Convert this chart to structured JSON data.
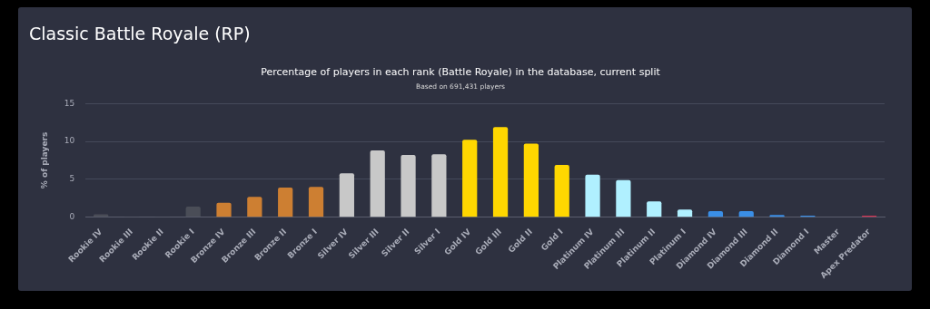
{
  "chart_data": {
    "type": "bar",
    "title": "Classic Battle Royale (RP)",
    "subtitle": "Percentage of players in each rank (Battle Royale) in the database, current split",
    "annotations": [
      "Based on 691,431 players"
    ],
    "ylabel": "% of players",
    "categories": [
      "Rookie IV",
      "Rookie III",
      "Rookie II",
      "Rookie I",
      "Bronze IV",
      "Bronze III",
      "Bronze II",
      "Bronze I",
      "Silver IV",
      "Silver III",
      "Silver II",
      "Silver I",
      "Gold IV",
      "Gold III",
      "Gold II",
      "Gold I",
      "Platinum IV",
      "Platinum III",
      "Platinum II",
      "Platinum I",
      "Diamond IV",
      "Diamond III",
      "Diamond II",
      "Diamond I",
      "Master",
      "Apex Predator"
    ],
    "values": [
      0.4,
      0.1,
      0.1,
      1.4,
      1.9,
      2.7,
      3.9,
      4.0,
      5.8,
      8.8,
      8.2,
      8.3,
      10.2,
      11.9,
      9.7,
      6.9,
      5.6,
      4.9,
      2.1,
      1.0,
      0.8,
      0.8,
      0.3,
      0.2,
      null,
      0.2
    ],
    "colors": [
      "#4a4d57",
      "#4a4d57",
      "#4a4d57",
      "#4a4d57",
      "#cd7f32",
      "#cd7f32",
      "#cd7f32",
      "#cd7f32",
      "#c8c8c8",
      "#c8c8c8",
      "#c8c8c8",
      "#c8c8c8",
      "#ffd700",
      "#ffd700",
      "#ffd700",
      "#ffd700",
      "#b0f0ff",
      "#b0f0ff",
      "#b0f0ff",
      "#b0f0ff",
      "#3a8ee6",
      "#3a8ee6",
      "#3a8ee6",
      "#3a8ee6",
      "#9b59b6",
      "#d63150"
    ],
    "ylim": [
      0,
      15
    ],
    "yticks": [
      0,
      5,
      10,
      15
    ],
    "grid": "y",
    "legend": false
  }
}
